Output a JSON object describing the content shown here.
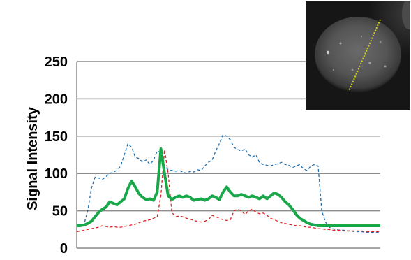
{
  "chart_data": {
    "type": "line",
    "title": "",
    "xlabel": "",
    "ylabel": "Signal Intensity",
    "ylim": [
      0,
      250
    ],
    "yticks": [
      0,
      50,
      100,
      150,
      200,
      250
    ],
    "grid": "horizontal",
    "legend": "none",
    "x": [
      0,
      1,
      2,
      3,
      4,
      5,
      6,
      7,
      8,
      9,
      10,
      11,
      12,
      13,
      14,
      15,
      16,
      17,
      18,
      19,
      20,
      21,
      22,
      23,
      24,
      25,
      26,
      27,
      28,
      29,
      30,
      31,
      32,
      33,
      34,
      35,
      36,
      37,
      38,
      39,
      40,
      41,
      42,
      43,
      44,
      45,
      46,
      47,
      48,
      49,
      50,
      51,
      52,
      53,
      54,
      55,
      56,
      57,
      58,
      59,
      60,
      61,
      62,
      63,
      64,
      65,
      66,
      67,
      68,
      69,
      70,
      71,
      72,
      73,
      74,
      75,
      76,
      77,
      78,
      79,
      80,
      81,
      82,
      83
    ],
    "series": [
      {
        "color": "#1f6fb0",
        "style": "dashed",
        "values": [
          30,
          30,
          32,
          50,
          80,
          95,
          94,
          92,
          96,
          100,
          102,
          104,
          110,
          125,
          140,
          135,
          122,
          120,
          115,
          118,
          112,
          118,
          130,
          128,
          110,
          105,
          104,
          103,
          104,
          102,
          100,
          103,
          102,
          105,
          104,
          110,
          115,
          118,
          130,
          140,
          152,
          150,
          145,
          135,
          132,
          130,
          133,
          125,
          122,
          125,
          114,
          112,
          111,
          110,
          112,
          113,
          115,
          112,
          111,
          108,
          110,
          112,
          106,
          104,
          110,
          112,
          110,
          50,
          35,
          28,
          26,
          25,
          24,
          24,
          23,
          23,
          22,
          22,
          22,
          21,
          21,
          21,
          21,
          20
        ]
      },
      {
        "color": "#e02020",
        "style": "dashed",
        "values": [
          22,
          23,
          24,
          25,
          26,
          27,
          28,
          30,
          29,
          28,
          29,
          28,
          28,
          29,
          30,
          31,
          32,
          34,
          36,
          37,
          38,
          40,
          42,
          70,
          132,
          100,
          48,
          42,
          43,
          42,
          40,
          39,
          37,
          36,
          35,
          36,
          38,
          44,
          42,
          40,
          38,
          37,
          38,
          50,
          52,
          50,
          45,
          50,
          52,
          48,
          46,
          47,
          44,
          40,
          38,
          36,
          34,
          33,
          32,
          31,
          30,
          30,
          29,
          28,
          28,
          27,
          26,
          26,
          25,
          25,
          24,
          24,
          24,
          23,
          23,
          23,
          23,
          23,
          23,
          22,
          22,
          22,
          22,
          22
        ]
      },
      {
        "color": "#18a84a",
        "style": "solid",
        "values": [
          30,
          30,
          31,
          33,
          36,
          42,
          48,
          52,
          55,
          62,
          60,
          58,
          62,
          66,
          80,
          90,
          82,
          73,
          68,
          65,
          66,
          64,
          75,
          133,
          100,
          70,
          65,
          68,
          70,
          68,
          70,
          68,
          64,
          65,
          66,
          64,
          66,
          70,
          68,
          65,
          75,
          82,
          75,
          70,
          70,
          72,
          70,
          68,
          70,
          68,
          66,
          70,
          66,
          70,
          74,
          72,
          68,
          62,
          58,
          52,
          45,
          40,
          37,
          34,
          32,
          31,
          30,
          30,
          30,
          30,
          30,
          30,
          30,
          30,
          30,
          30,
          30,
          30,
          30,
          30,
          30,
          30,
          30,
          30
        ]
      }
    ]
  },
  "inset": {
    "line_color": "#d4d020",
    "background": "#111111"
  }
}
